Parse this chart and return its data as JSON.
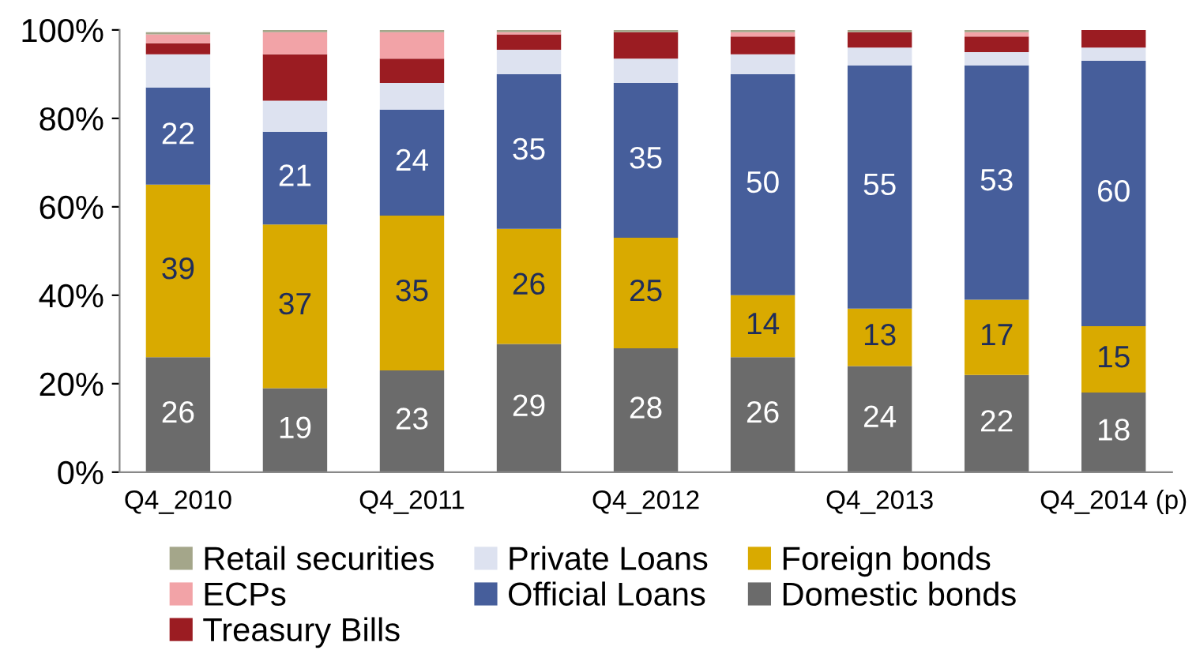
{
  "chart_data": {
    "type": "bar",
    "stacked": true,
    "categories": [
      "Q4_2010",
      null,
      "Q4_2011",
      null,
      "Q4_2012",
      null,
      "Q4_2013",
      null,
      "Q4_2014 (p)"
    ],
    "series": [
      {
        "name": "Domestic bonds",
        "color": "#6b6b6b",
        "values": [
          26,
          19,
          23,
          29,
          28,
          26,
          24,
          22,
          18
        ],
        "value_labels": [
          "26",
          "19",
          "23",
          "29",
          "28",
          "26",
          "24",
          "22",
          "18"
        ]
      },
      {
        "name": "Foreign bonds",
        "color": "#d9aa00",
        "values": [
          39,
          37,
          35,
          26,
          25,
          14,
          13,
          17,
          15
        ],
        "value_labels": [
          "39",
          "37",
          "35",
          "26",
          "25",
          "14",
          "13",
          "17",
          "15"
        ]
      },
      {
        "name": "Official Loans",
        "color": "#465e9b",
        "values": [
          22,
          21,
          24,
          35,
          35,
          50,
          55,
          53,
          60
        ],
        "value_labels": [
          "22",
          "21",
          "24",
          "35",
          "35",
          "50",
          "55",
          "53",
          "60"
        ]
      },
      {
        "name": "Private Loans",
        "color": "#dde2f0",
        "values": [
          7.5,
          7,
          6,
          5.5,
          5.5,
          4.5,
          4,
          3,
          3
        ]
      },
      {
        "name": "Treasury Bills",
        "color": "#9b1c22",
        "values": [
          2.5,
          10.5,
          5.5,
          3.5,
          6,
          4,
          3.5,
          3.5,
          4
        ]
      },
      {
        "name": "ECPs",
        "color": "#f2a3a7",
        "values": [
          2,
          5,
          6,
          0.5,
          0,
          1,
          0,
          1,
          0
        ]
      },
      {
        "name": "Retail securities",
        "color": "#a4a68a",
        "values": [
          0.5,
          0.5,
          0.5,
          0.5,
          0.5,
          0.5,
          0.5,
          0.5,
          0
        ]
      }
    ],
    "ylim": [
      0,
      100
    ],
    "yticks": [
      {
        "value": 0,
        "label": "0%"
      },
      {
        "value": 20,
        "label": "20%"
      },
      {
        "value": 40,
        "label": "40%"
      },
      {
        "value": 60,
        "label": "60%"
      },
      {
        "value": 80,
        "label": "80%"
      },
      {
        "value": 100,
        "label": "100%"
      }
    ],
    "grid": false,
    "legend": "bottom"
  }
}
